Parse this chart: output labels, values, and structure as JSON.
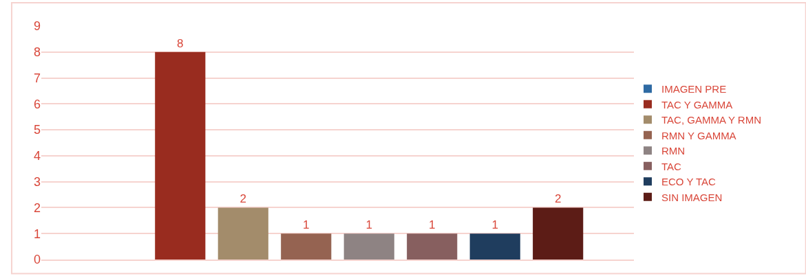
{
  "chart_data": {
    "type": "bar",
    "categories": [
      null
    ],
    "series": [
      {
        "name": "IMAGEN PRE",
        "color": "#2e6aa3",
        "values": [
          0
        ],
        "value_labels": [
          null
        ]
      },
      {
        "name": "TAC Y GAMMA",
        "color": "#992c1f",
        "values": [
          8
        ],
        "value_labels": [
          "8"
        ]
      },
      {
        "name": "TAC, GAMMA Y RMN",
        "color": "#a38c6b",
        "values": [
          2
        ],
        "value_labels": [
          "2"
        ]
      },
      {
        "name": "RMN Y GAMMA",
        "color": "#956351",
        "values": [
          1
        ],
        "value_labels": [
          "1"
        ]
      },
      {
        "name": "RMN",
        "color": "#8e8383",
        "values": [
          1
        ],
        "value_labels": [
          "1"
        ]
      },
      {
        "name": "TAC",
        "color": "#875f5f",
        "values": [
          1
        ],
        "value_labels": [
          "1"
        ]
      },
      {
        "name": "ECO Y TAC",
        "color": "#1f3d5e",
        "values": [
          1
        ],
        "value_labels": [
          "1"
        ]
      },
      {
        "name": "SIN IMAGEN",
        "color": "#5c1c16",
        "values": [
          2
        ],
        "value_labels": [
          "2"
        ]
      }
    ],
    "ylim": [
      0,
      9
    ],
    "yticks": [
      0,
      1,
      2,
      3,
      4,
      5,
      6,
      7,
      8,
      9
    ],
    "grid": "y",
    "legend": "right"
  }
}
